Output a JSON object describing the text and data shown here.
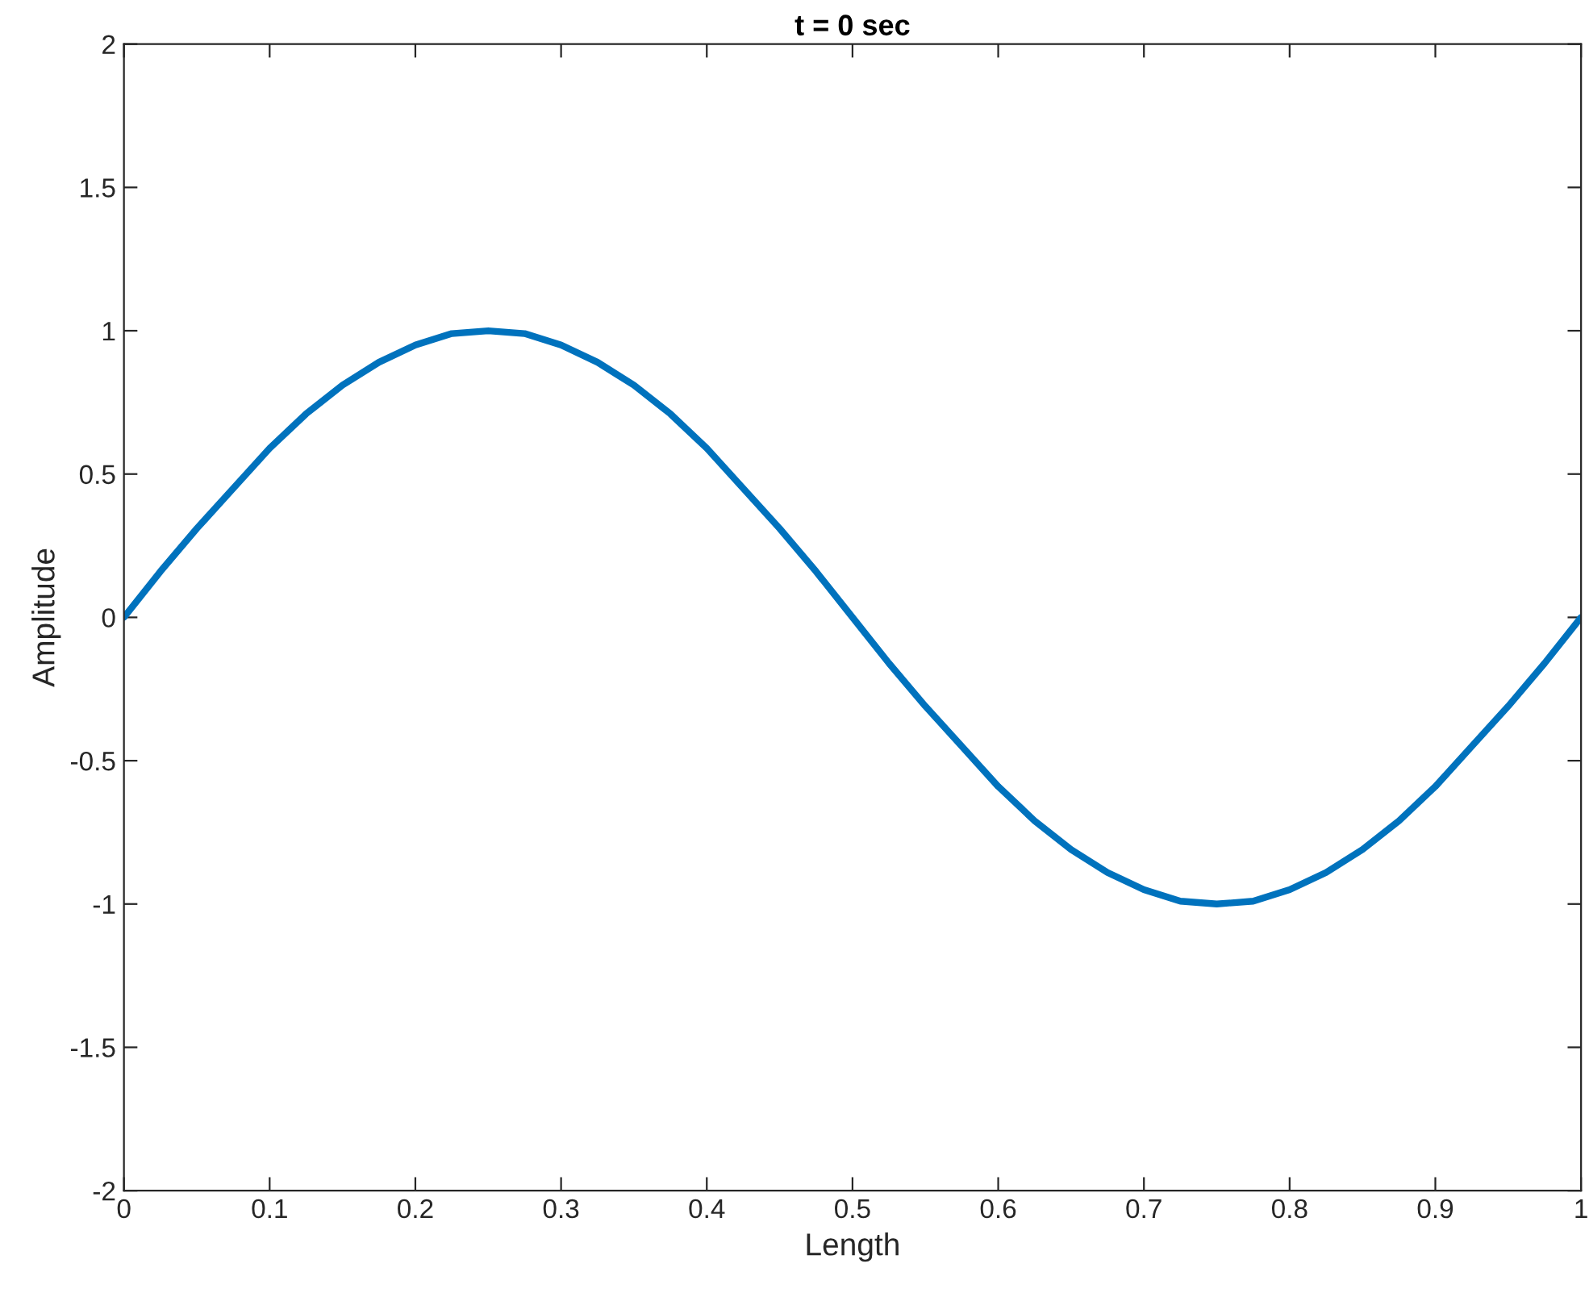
{
  "chart_data": {
    "type": "line",
    "title": "t = 0 sec",
    "xlabel": "Length",
    "ylabel": "Amplitude",
    "x": [
      0,
      0.025,
      0.05,
      0.075,
      0.1,
      0.125,
      0.15,
      0.175,
      0.2,
      0.225,
      0.25,
      0.275,
      0.3,
      0.325,
      0.35,
      0.375,
      0.4,
      0.425,
      0.45,
      0.475,
      0.5,
      0.525,
      0.55,
      0.575,
      0.6,
      0.625,
      0.65,
      0.675,
      0.7,
      0.725,
      0.75,
      0.775,
      0.8,
      0.825,
      0.85,
      0.875,
      0.9,
      0.925,
      0.95,
      0.975,
      1
    ],
    "series": [
      {
        "color": "#0072bd",
        "values": [
          0,
          0.16,
          0.31,
          0.45,
          0.59,
          0.71,
          0.81,
          0.89,
          0.95,
          0.99,
          1,
          0.99,
          0.95,
          0.89,
          0.81,
          0.71,
          0.59,
          0.45,
          0.31,
          0.16,
          0,
          -0.16,
          -0.31,
          -0.45,
          -0.59,
          -0.71,
          -0.81,
          -0.89,
          -0.95,
          -0.99,
          -1,
          -0.99,
          -0.95,
          -0.89,
          -0.81,
          -0.71,
          -0.59,
          -0.45,
          -0.31,
          -0.16,
          0
        ]
      }
    ],
    "xlim": [
      0,
      1
    ],
    "ylim": [
      -2,
      2
    ],
    "xticks": [
      0,
      0.1,
      0.2,
      0.3,
      0.4,
      0.5,
      0.6,
      0.7,
      0.8,
      0.9,
      1
    ],
    "yticks": [
      -2,
      -1.5,
      -1,
      -0.5,
      0,
      0.5,
      1,
      1.5,
      2
    ],
    "grid": false,
    "legend": false,
    "marker": "none",
    "line_style": "solid"
  }
}
